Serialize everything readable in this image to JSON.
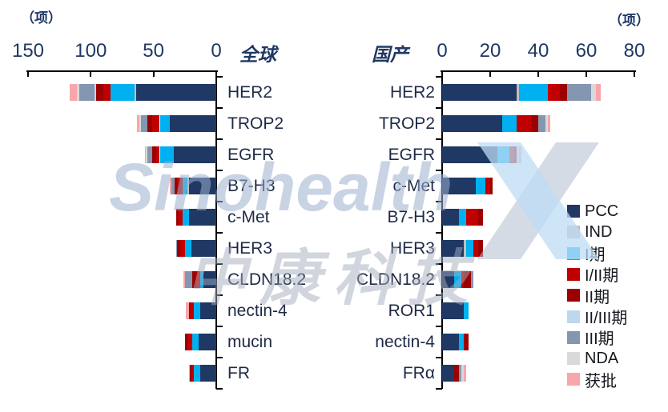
{
  "chart_data": {
    "type": "bar",
    "variant": "horizontal-stacked-butterfly",
    "unit_label": "（项）",
    "stages": [
      "PCC",
      "IND",
      "I期",
      "I/II期",
      "II期",
      "II/III期",
      "III期",
      "NDA",
      "获批"
    ],
    "stage_colors": [
      "#1F3864",
      "#BFBFBF",
      "#00B0F0",
      "#C00000",
      "#9C0000",
      "#BDD7EE",
      "#8496B0",
      "#D9D9D9",
      "#F7A6AC"
    ],
    "legend_position": "right",
    "grid": false,
    "charts": [
      {
        "title": "全球",
        "direction": "left",
        "axis_ticks": [
          150,
          100,
          50,
          0
        ],
        "xlim": [
          0,
          150
        ],
        "categories": [
          "HER2",
          "TROP2",
          "EGFR",
          "B7-H3",
          "c-Met",
          "HER3",
          "CLDN18.2",
          "nectin-4",
          "mucin",
          "FR"
        ],
        "series_values": [
          [
            64,
            1,
            19,
            6,
            6,
            1,
            12,
            2,
            6
          ],
          [
            37,
            0,
            8,
            6,
            4,
            0,
            5,
            1,
            2
          ],
          [
            34,
            0,
            11,
            3,
            3,
            0,
            4,
            1,
            1
          ],
          [
            22,
            1,
            4,
            4,
            2,
            0,
            3,
            0,
            1
          ],
          [
            22,
            0,
            5,
            3,
            2,
            0,
            0,
            0,
            0
          ],
          [
            20,
            0,
            5,
            4,
            2,
            0,
            1,
            0,
            0
          ],
          [
            10,
            0,
            3,
            3,
            3,
            0,
            6,
            0,
            1
          ],
          [
            13,
            0,
            5,
            3,
            1,
            0,
            0,
            0,
            2
          ],
          [
            14,
            0,
            5,
            4,
            2,
            0,
            0,
            0,
            0
          ],
          [
            13,
            0,
            5,
            2,
            1,
            0,
            0,
            0,
            1
          ]
        ]
      },
      {
        "title": "国产",
        "direction": "right",
        "axis_ticks": [
          0,
          20,
          40,
          60,
          80
        ],
        "xlim": [
          0,
          80
        ],
        "categories": [
          "HER2",
          "TROP2",
          "EGFR",
          "c-Met",
          "B7-H3",
          "HER3",
          "CLDN18.2",
          "ROR1",
          "nectin-4",
          "FRα"
        ],
        "series_values": [
          [
            31,
            1,
            12,
            5,
            3,
            0,
            10,
            2,
            2
          ],
          [
            25,
            0,
            6,
            6,
            3,
            0,
            3,
            1,
            1
          ],
          [
            23,
            0,
            5,
            2,
            1,
            0,
            0,
            1,
            1
          ],
          [
            14,
            0,
            4,
            2,
            1,
            0,
            0,
            0,
            0
          ],
          [
            7,
            0,
            3,
            5,
            2,
            0,
            0,
            0,
            0
          ],
          [
            9,
            1,
            3,
            2,
            2,
            0,
            0,
            0,
            0
          ],
          [
            5,
            0,
            3,
            1,
            3,
            0,
            1,
            0,
            0
          ],
          [
            9,
            0,
            2,
            0,
            0,
            0,
            0,
            0,
            0
          ],
          [
            7,
            0,
            2,
            0,
            2,
            0,
            0,
            0,
            0
          ],
          [
            5,
            0,
            0,
            0,
            2,
            0,
            1,
            1,
            1
          ]
        ]
      }
    ],
    "watermark": {
      "brand": "Sinohealth",
      "brand_cn": "中康科技"
    }
  }
}
